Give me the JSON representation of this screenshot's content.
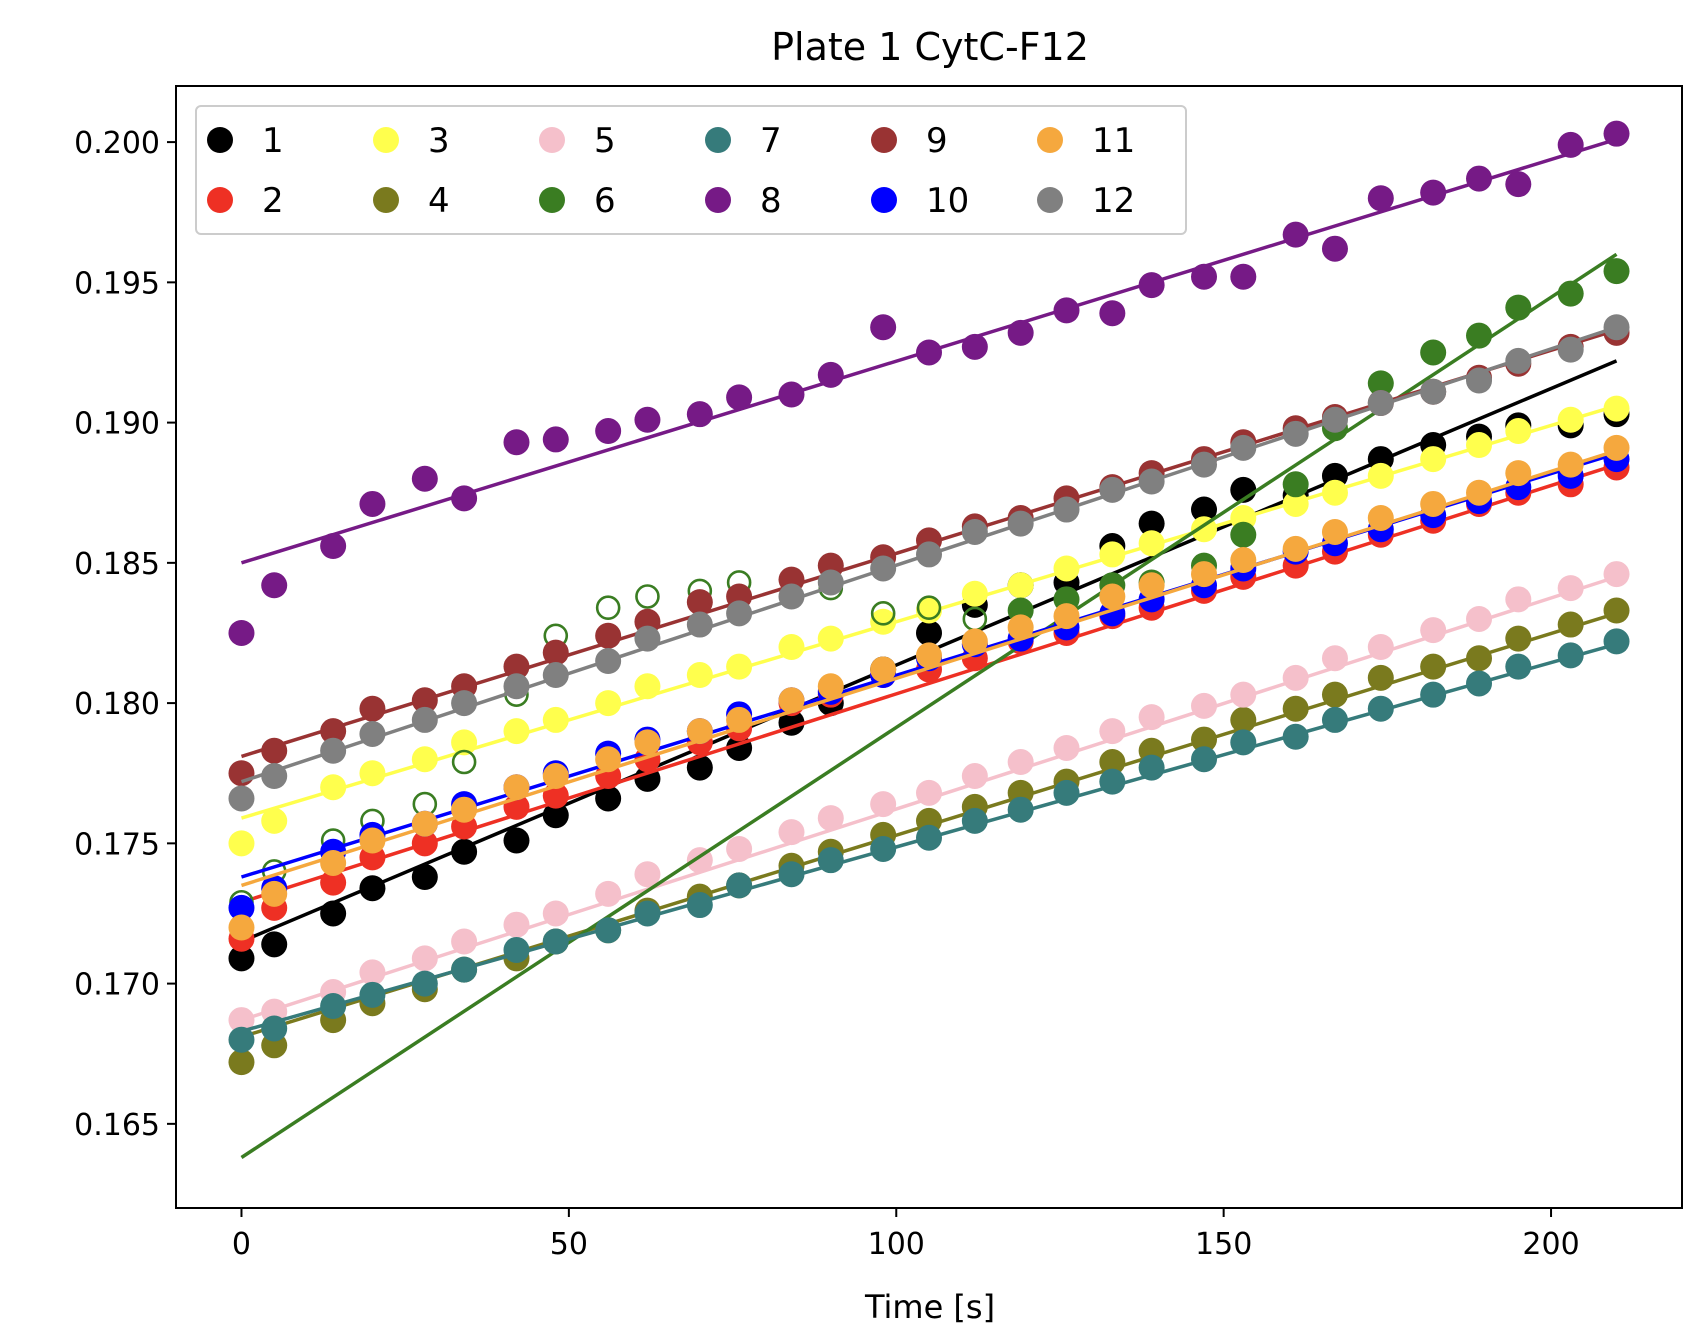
{
  "chart_data": {
    "type": "scatter",
    "title": "Plate 1 CytC-F12",
    "xlabel": "Time [s]",
    "ylabel": "",
    "xlim": [
      -10,
      220
    ],
    "ylim": [
      0.162,
      0.202
    ],
    "xticks": [
      0,
      50,
      100,
      150,
      200
    ],
    "yticks": [
      0.165,
      0.17,
      0.175,
      0.18,
      0.185,
      0.19,
      0.195,
      0.2
    ],
    "xtick_labels": [
      "0",
      "50",
      "100",
      "150",
      "200"
    ],
    "ytick_labels": [
      "0.165",
      "0.170",
      "0.175",
      "0.180",
      "0.185",
      "0.190",
      "0.195",
      "0.200"
    ],
    "grid": false,
    "legend": {
      "position": "top-left",
      "columns": 6
    },
    "x": [
      0,
      5,
      14,
      20,
      28,
      34,
      42,
      48,
      56,
      62,
      70,
      76,
      84,
      90,
      98,
      105,
      112,
      119,
      126,
      133,
      139,
      147,
      153,
      161,
      167,
      174,
      182,
      189,
      195,
      203,
      210
    ],
    "series": [
      {
        "name": "1",
        "color": "#000000",
        "values": [
          0.1709,
          0.1714,
          0.1725,
          0.1734,
          0.1738,
          0.1747,
          0.1751,
          0.176,
          0.1766,
          0.1773,
          0.1777,
          0.1784,
          0.1793,
          0.18,
          0.1812,
          0.1825,
          0.1835,
          0.1842,
          0.1843,
          0.1856,
          0.1864,
          0.1869,
          0.1876,
          0.1874,
          0.1881,
          0.1887,
          0.1892,
          0.1895,
          0.1899,
          0.1899,
          0.1903
        ],
        "fit": [
          0.1715,
          0.1922
        ]
      },
      {
        "name": "2",
        "color": "#ee3024",
        "values": [
          0.1716,
          0.1727,
          0.1736,
          0.1745,
          0.175,
          0.1756,
          0.1763,
          0.1767,
          0.1774,
          0.178,
          0.1786,
          0.1791,
          0.18,
          0.1803,
          0.181,
          0.1812,
          0.1816,
          0.1822,
          0.1825,
          0.1831,
          0.1834,
          0.184,
          0.1845,
          0.1849,
          0.1854,
          0.186,
          0.1865,
          0.1871,
          0.1875,
          0.1878,
          0.1884
        ],
        "fit": [
          0.1729,
          0.1885
        ]
      },
      {
        "name": "3",
        "color": "#ffff4d",
        "values": [
          0.175,
          0.1758,
          0.177,
          0.1775,
          0.178,
          0.1786,
          0.179,
          0.1794,
          0.18,
          0.1806,
          0.181,
          0.1813,
          0.182,
          0.1823,
          0.1829,
          0.1833,
          0.1839,
          0.1842,
          0.1848,
          0.1853,
          0.1857,
          0.1862,
          0.1866,
          0.1871,
          0.1875,
          0.1881,
          0.1887,
          0.1892,
          0.1897,
          0.1901,
          0.1905
        ],
        "fit": [
          0.1759,
          0.1906
        ]
      },
      {
        "name": "4",
        "color": "#7a7a1e",
        "values": [
          0.1672,
          0.1678,
          0.1687,
          0.1693,
          0.1698,
          0.1705,
          0.1709,
          0.1715,
          0.1719,
          0.1726,
          0.1731,
          0.1735,
          0.1742,
          0.1747,
          0.1753,
          0.1758,
          0.1763,
          0.1768,
          0.1772,
          0.1779,
          0.1783,
          0.1787,
          0.1794,
          0.1798,
          0.1803,
          0.1809,
          0.1813,
          0.1816,
          0.1823,
          0.1828,
          0.1833
        ],
        "fit": [
          0.1681,
          0.1832
        ]
      },
      {
        "name": "5",
        "color": "#f5c0cb",
        "values": [
          0.1687,
          0.169,
          0.1697,
          0.1704,
          0.1709,
          0.1715,
          0.1721,
          0.1725,
          0.1732,
          0.1739,
          0.1744,
          0.1748,
          0.1754,
          0.1759,
          0.1764,
          0.1768,
          0.1774,
          0.1779,
          0.1784,
          0.179,
          0.1795,
          0.1799,
          0.1803,
          0.1809,
          0.1816,
          0.182,
          0.1826,
          0.183,
          0.1837,
          0.1841,
          0.1846
        ],
        "fit": [
          0.1687,
          0.1845
        ]
      },
      {
        "name": "6",
        "color": "#3a7d22",
        "values": [
          0.1729,
          0.174,
          0.1751,
          0.1758,
          0.1764,
          0.1779,
          0.1803,
          0.1824,
          0.1834,
          0.1838,
          0.184,
          0.1843,
          0.1838,
          0.1841,
          0.1832,
          0.1834,
          0.183,
          0.1833,
          0.1837,
          0.1842,
          0.1843,
          0.1849,
          0.186,
          0.1878,
          0.1898,
          0.1914,
          0.1925,
          0.1931,
          0.1941,
          0.1946,
          0.1954
        ],
        "hollow": [
          0,
          1,
          2,
          3,
          4,
          5,
          6,
          7,
          8,
          9,
          10,
          11,
          12,
          13,
          14,
          15,
          16
        ],
        "fit": [
          0.1638,
          0.196
        ]
      },
      {
        "name": "7",
        "color": "#367b7b",
        "values": [
          0.168,
          0.1684,
          0.1692,
          0.1696,
          0.17,
          0.1705,
          0.1712,
          0.1715,
          0.1719,
          0.1725,
          0.1728,
          0.1735,
          0.1739,
          0.1744,
          0.1748,
          0.1752,
          0.1758,
          0.1762,
          0.1768,
          0.1772,
          0.1777,
          0.178,
          0.1786,
          0.1788,
          0.1794,
          0.1798,
          0.1803,
          0.1807,
          0.1813,
          0.1817,
          0.1822
        ],
        "fit": [
          0.1683,
          0.1821
        ]
      },
      {
        "name": "8",
        "color": "#761a86",
        "values": [
          0.1825,
          0.1842,
          0.1856,
          0.1871,
          0.188,
          0.1873,
          0.1893,
          0.1894,
          0.1897,
          0.1901,
          0.1903,
          0.1909,
          0.191,
          0.1917,
          0.1934,
          0.1925,
          0.1927,
          0.1932,
          0.194,
          0.1939,
          0.1949,
          0.1952,
          0.1952,
          0.1967,
          0.1962,
          0.198,
          0.1982,
          0.1987,
          0.1985,
          0.1999,
          0.2003
        ],
        "fit": [
          0.185,
          0.2001
        ]
      },
      {
        "name": "9",
        "color": "#993333",
        "values": [
          0.1775,
          0.1783,
          0.179,
          0.1798,
          0.1801,
          0.1806,
          0.1813,
          0.1818,
          0.1824,
          0.1829,
          0.1836,
          0.1838,
          0.1844,
          0.1849,
          0.1852,
          0.1858,
          0.1863,
          0.1866,
          0.1873,
          0.1877,
          0.1882,
          0.1887,
          0.1893,
          0.1898,
          0.1902,
          0.1907,
          0.1911,
          0.1916,
          0.1921,
          0.1927,
          0.1932
        ],
        "fit": [
          0.1781,
          0.1933
        ]
      },
      {
        "name": "10",
        "color": "#0000ff",
        "values": [
          0.1727,
          0.1734,
          0.1747,
          0.1753,
          0.1757,
          0.1764,
          0.177,
          0.1775,
          0.1782,
          0.1787,
          0.179,
          0.1796,
          0.1801,
          0.1804,
          0.181,
          0.1816,
          0.1821,
          0.1823,
          0.1827,
          0.1832,
          0.1837,
          0.1842,
          0.1848,
          0.1854,
          0.1857,
          0.1862,
          0.1867,
          0.1872,
          0.1877,
          0.1881,
          0.1887
        ],
        "fit": [
          0.1738,
          0.1889
        ]
      },
      {
        "name": "11",
        "color": "#f5a83e",
        "values": [
          0.172,
          0.1732,
          0.1743,
          0.1751,
          0.1757,
          0.1762,
          0.177,
          0.1774,
          0.178,
          0.1786,
          0.179,
          0.1794,
          0.1801,
          0.1806,
          0.1812,
          0.1817,
          0.1822,
          0.1827,
          0.1831,
          0.1838,
          0.1842,
          0.1846,
          0.1851,
          0.1855,
          0.1861,
          0.1866,
          0.1871,
          0.1875,
          0.1882,
          0.1885,
          0.1891
        ],
        "fit": [
          0.1735,
          0.189
        ]
      },
      {
        "name": "12",
        "color": "#808080",
        "values": [
          0.1766,
          0.1774,
          0.1783,
          0.1789,
          0.1794,
          0.18,
          0.1806,
          0.181,
          0.1815,
          0.1823,
          0.1828,
          0.1832,
          0.1838,
          0.1843,
          0.1848,
          0.1853,
          0.1861,
          0.1864,
          0.1869,
          0.1876,
          0.1879,
          0.1885,
          0.1891,
          0.1896,
          0.1901,
          0.1907,
          0.1911,
          0.1915,
          0.1922,
          0.1926,
          0.1934
        ],
        "fit": [
          0.1772,
          0.1934
        ]
      }
    ]
  }
}
